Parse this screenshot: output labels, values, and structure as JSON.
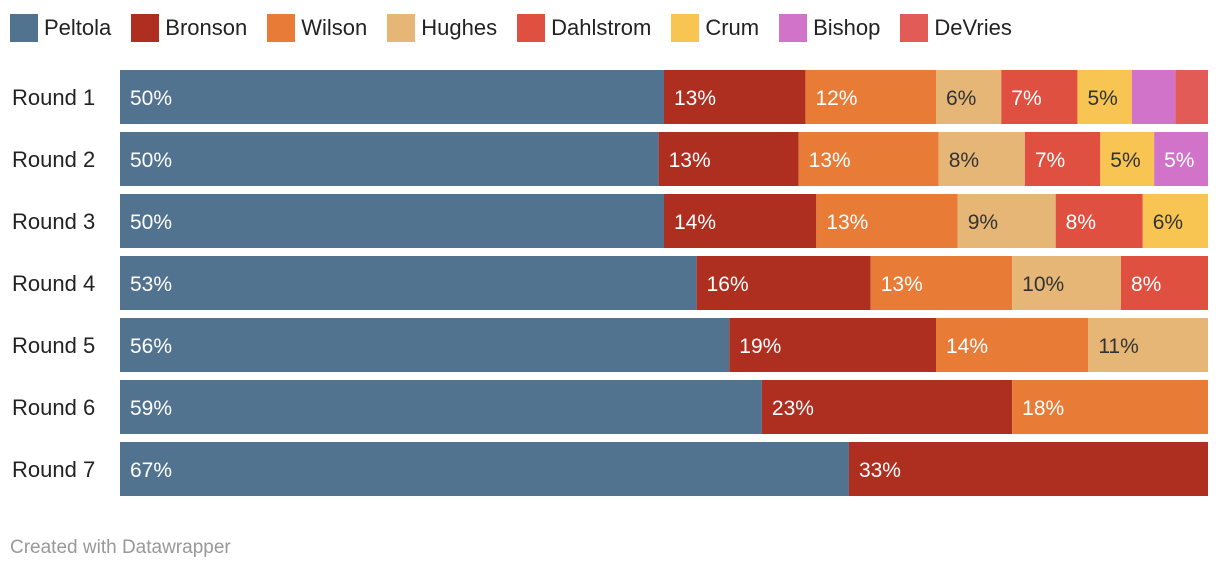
{
  "chart_data": {
    "type": "bar",
    "orientation": "horizontal",
    "stacked": true,
    "title": "",
    "xlabel": "",
    "ylabel": "",
    "xlim": [
      0,
      100
    ],
    "legend_position": "top",
    "categories": [
      "Round 1",
      "Round 2",
      "Round 3",
      "Round 4",
      "Round 5",
      "Round 6",
      "Round 7"
    ],
    "series": [
      {
        "name": "Peltola",
        "color": "#51738f",
        "label_color": "#ffffff",
        "values": [
          50,
          50,
          50,
          53,
          56,
          59,
          67
        ],
        "labels": [
          "50%",
          "50%",
          "50%",
          "53%",
          "56%",
          "59%",
          "67%"
        ]
      },
      {
        "name": "Bronson",
        "color": "#ae2e1f",
        "label_color": "#ffffff",
        "values": [
          13,
          13,
          14,
          16,
          19,
          23,
          33
        ],
        "labels": [
          "13%",
          "13%",
          "14%",
          "16%",
          "19%",
          "23%",
          "33%"
        ]
      },
      {
        "name": "Wilson",
        "color": "#e87c37",
        "label_color": "#ffffff",
        "values": [
          12,
          13,
          13,
          13,
          14,
          18,
          0
        ],
        "labels": [
          "12%",
          "13%",
          "13%",
          "13%",
          "14%",
          "18%",
          ""
        ]
      },
      {
        "name": "Hughes",
        "color": "#e5b676",
        "label_color": "#333333",
        "values": [
          6,
          8,
          9,
          10,
          11,
          0,
          0
        ],
        "labels": [
          "6%",
          "8%",
          "9%",
          "10%",
          "11%",
          "",
          ""
        ]
      },
      {
        "name": "Dahlstrom",
        "color": "#df5040",
        "label_color": "#ffffff",
        "values": [
          7,
          7,
          8,
          8,
          0,
          0,
          0
        ],
        "labels": [
          "7%",
          "7%",
          "8%",
          "8%",
          "",
          "",
          ""
        ]
      },
      {
        "name": "Crum",
        "color": "#f8c452",
        "label_color": "#333333",
        "values": [
          5,
          5,
          6,
          0,
          0,
          0,
          0
        ],
        "labels": [
          "5%",
          "5%",
          "6%",
          "",
          "",
          "",
          ""
        ]
      },
      {
        "name": "Bishop",
        "color": "#d173c9",
        "label_color": "#ffffff",
        "values": [
          4,
          5,
          0,
          0,
          0,
          0,
          0
        ],
        "labels": [
          "",
          "5%",
          "",
          "",
          "",
          "",
          ""
        ]
      },
      {
        "name": "DeVries",
        "color": "#e35b56",
        "label_color": "#ffffff",
        "values": [
          3,
          0,
          0,
          0,
          0,
          0,
          0
        ],
        "labels": [
          "",
          "",
          "",
          "",
          "",
          "",
          ""
        ]
      }
    ]
  },
  "credit": "Created with Datawrapper"
}
